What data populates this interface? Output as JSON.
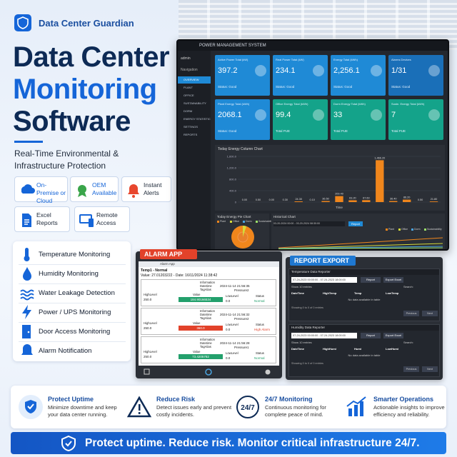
{
  "brand": "Data Center Guardian",
  "title": {
    "line1": "Data Center",
    "line2": "Monitoring",
    "line3": "Software"
  },
  "subtitle": "Real-Time Environmental & Infrastructure Protection",
  "badges": [
    "On-Premise or Cloud",
    "OEM Available",
    "Instant Alerts",
    "Excel Reports",
    "Remote Access"
  ],
  "features": [
    "Temperature Monitoring",
    "Humidity Monitoring",
    "Water Leakage Detection",
    "Power / UPS Monitoring",
    "Door Access Monitoring",
    "Alarm Notification"
  ],
  "dashboard": {
    "header": "POWER MANAGEMENT SYSTEM",
    "user": "admin",
    "nav_title": "Navigation",
    "menu": [
      "OVERVIEW",
      "PLANT",
      "OFFICE",
      "SUSTAINABILITY",
      "DORM",
      "ENERGY STATISTIC",
      "SETTINGS",
      "REPORTS"
    ],
    "cards": [
      {
        "label": "Active Power Total (kW)",
        "value": "397.2",
        "status": "Status: Good"
      },
      {
        "label": "Real Power Total (kW)",
        "value": "234.1",
        "status": "Status: Good"
      },
      {
        "label": "Energy Total (kWh)",
        "value": "2,256.1",
        "status": "Status: Good"
      },
      {
        "label": "Alarms Devices",
        "value": "1/31",
        "status": "Status: Good"
      },
      {
        "label": "Plant Energy Total (kWh)",
        "value": "2068.1",
        "status": "Status: Good"
      },
      {
        "label": "Office Energy Total (kWh)",
        "value": "99.4",
        "status": "Total PUE"
      },
      {
        "label": "Dorm Energy Total (kWh)",
        "value": "33",
        "status": "Total PUE"
      },
      {
        "label": "Sustn. Energy Total (kWh)",
        "value": "7",
        "status": "Total PUE"
      }
    ],
    "column_chart": {
      "title": "Today Energy Column Chart",
      "values": [
        0,
        0.5,
        0,
        0.3,
        24.3,
        0.1,
        36.5,
        209.4,
        63.2,
        67.6,
        1466.2,
        36.4,
        86.2,
        0.5,
        21.8
      ],
      "value_labels": [
        "0.00",
        "0.50",
        "0.00",
        "0.30",
        "24.30",
        "0.10",
        "36.50",
        "209.40",
        "63.20",
        "67.60",
        "1,466.20",
        "36.40",
        "86.20",
        "0.50",
        "21.80"
      ],
      "ylim": [
        0,
        1600
      ],
      "yticks": [
        0,
        {
          "value": 400,
          "label": "400.0"
        },
        {
          "value": 800,
          "label": "800.0"
        },
        {
          "value": 1200,
          "label": "1,200.0"
        },
        {
          "value": 1600,
          "label": "1,600.0"
        }
      ],
      "x_label": "Time",
      "color": "#f0861c"
    },
    "pie_title": "Today Energy Pie Chart",
    "historical_title": "Historical Chart",
    "legend": [
      "Plant",
      "Office",
      "Dorm",
      "Sustainability"
    ],
    "date_range": "03-20-2024 00:00 - 03-20-2024 08:30:00",
    "report_button": "Report"
  },
  "alarm_app": {
    "title": "ALARM APP",
    "subheader": "Alarm App",
    "record_title": "Temp1 - Normal",
    "record_value": "Value: 27.01203222 - Date: 16/11/2024 11:38:42",
    "fields": [
      "Information",
      "Datetime",
      "TagAlias",
      "HighLevel",
      "Value",
      "LowLevel",
      "Status"
    ],
    "records": [
      {
        "time": "2024-11-14 21:56:35",
        "tag": "Pressure2",
        "high": "250.0",
        "value": "184.90166534",
        "low": "0.0",
        "status": "Normal"
      },
      {
        "time": "2024-11-14 21:56:32",
        "tag": "Pressure2",
        "high": "250.0",
        "value": "360.0",
        "low": "0.0",
        "status": "High Alarm"
      },
      {
        "time": "2024-11-14 21:56:28",
        "tag": "Pressure1",
        "high": "250.0",
        "value": "73.4205782",
        "low": "0.0",
        "status": "Normal"
      }
    ]
  },
  "report_export": {
    "title": "REPORT EXPORT",
    "sections": [
      {
        "name": "Temperature Data Reporter",
        "columns": [
          "DateTime",
          "HighTemp",
          "Temp",
          "LowTemp"
        ]
      },
      {
        "name": "Humidity Data Reporter",
        "columns": [
          "DateTime",
          "HighHumi",
          "Humi",
          "LowHumi"
        ]
      }
    ],
    "date_range": "07-24-2023 00:00:00 - 07-24-2023 18:00:00",
    "buttons": [
      "Report",
      "Export Excel"
    ],
    "show": "Show 10 entries",
    "search": "Search:",
    "empty": "No data available in table",
    "showing": "Showing 0 to 0 of 0 entries",
    "pager": [
      "Previous",
      "Next"
    ]
  },
  "benefits": [
    {
      "title": "Protect Uptime",
      "text": "Minimize downtime and keep your data center running."
    },
    {
      "title": "Reduce Risk",
      "text": "Detect issues early and prevent costly incidents."
    },
    {
      "title": "24/7 Monitoring",
      "text": "Continuous monitoring for complete peace of mind."
    },
    {
      "title": "Smarter Operations",
      "text": "Actionable insights to improve efficiency and reliability."
    }
  ],
  "icon_247": "24/7",
  "banner": "Protect uptime. Reduce risk. Monitor critical infrastructure 24/7."
}
